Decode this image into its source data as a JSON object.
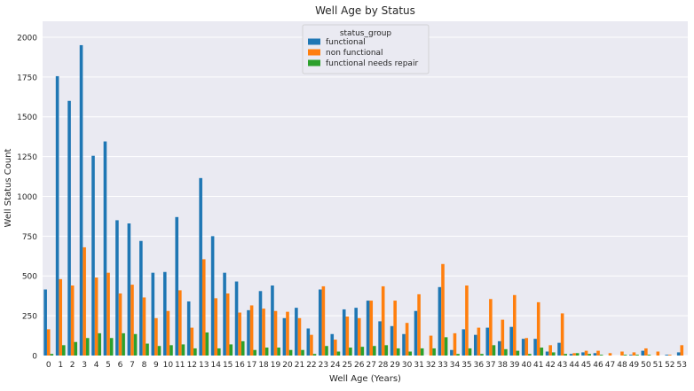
{
  "chart_data": {
    "type": "bar",
    "title": "Well Age by Status",
    "xlabel": "Well Age (Years)",
    "ylabel": "Well Status Count",
    "ylim": [
      0,
      2100
    ],
    "yticks": [
      0,
      250,
      500,
      750,
      1000,
      1250,
      1500,
      1750,
      2000
    ],
    "grid": true,
    "legend_title": "status_group",
    "legend_position": "top-center",
    "background_color": "#eaeaf2",
    "categories": [
      "0",
      "1",
      "2",
      "3",
      "4",
      "5",
      "6",
      "7",
      "8",
      "9",
      "10",
      "11",
      "12",
      "13",
      "14",
      "15",
      "16",
      "17",
      "18",
      "19",
      "20",
      "21",
      "22",
      "23",
      "24",
      "25",
      "26",
      "27",
      "28",
      "29",
      "30",
      "31",
      "32",
      "33",
      "34",
      "35",
      "36",
      "37",
      "38",
      "39",
      "40",
      "41",
      "42",
      "43",
      "44",
      "45",
      "46",
      "47",
      "48",
      "49",
      "50",
      "51",
      "52",
      "53"
    ],
    "series": [
      {
        "name": "functional",
        "color": "#1f77b4",
        "values": [
          415,
          1755,
          1600,
          1950,
          1255,
          1345,
          850,
          830,
          720,
          520,
          525,
          870,
          340,
          1115,
          750,
          520,
          465,
          285,
          405,
          440,
          235,
          300,
          170,
          415,
          135,
          290,
          300,
          345,
          215,
          185,
          135,
          280,
          0,
          430,
          35,
          165,
          130,
          175,
          90,
          180,
          105,
          105,
          25,
          80,
          10,
          20,
          15,
          0,
          0,
          5,
          30,
          0,
          5,
          20
        ]
      },
      {
        "name": "non functional",
        "color": "#ff7f0e",
        "values": [
          165,
          480,
          440,
          680,
          490,
          520,
          390,
          445,
          365,
          235,
          280,
          410,
          175,
          605,
          360,
          390,
          270,
          315,
          295,
          280,
          275,
          235,
          130,
          435,
          100,
          245,
          235,
          345,
          435,
          345,
          205,
          385,
          125,
          575,
          140,
          440,
          175,
          355,
          225,
          380,
          110,
          335,
          65,
          265,
          15,
          30,
          30,
          15,
          25,
          20,
          45,
          25,
          5,
          65
        ]
      },
      {
        "name": "functional needs repair",
        "color": "#2ca02c",
        "values": [
          10,
          65,
          85,
          110,
          140,
          110,
          140,
          135,
          75,
          60,
          65,
          70,
          45,
          145,
          45,
          70,
          90,
          35,
          50,
          50,
          35,
          35,
          10,
          60,
          25,
          50,
          55,
          60,
          65,
          45,
          25,
          45,
          45,
          115,
          10,
          45,
          10,
          65,
          40,
          30,
          10,
          50,
          20,
          10,
          15,
          10,
          5,
          0,
          5,
          5,
          5,
          0,
          0,
          0
        ]
      }
    ]
  }
}
